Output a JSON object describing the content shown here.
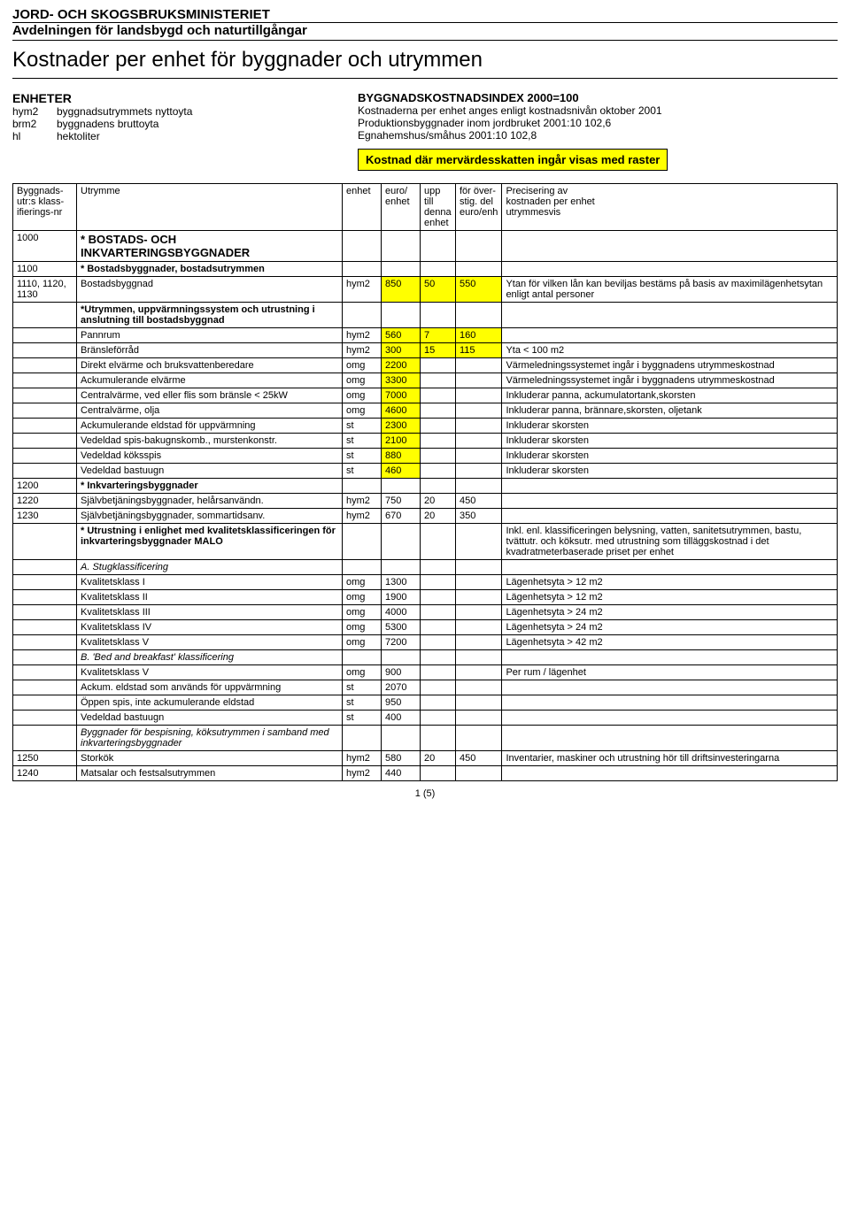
{
  "header": {
    "ministry": "JORD- OCH SKOGSBRUKSMINISTERIET",
    "department": "Avdelningen för landsbygd och naturtillgångar",
    "title": "Kostnader per enhet för byggnader och utrymmen"
  },
  "units": {
    "heading": "ENHETER",
    "rows": [
      {
        "abbr": "hym2",
        "desc": "byggnadsutrymmets nyttoyta"
      },
      {
        "abbr": "brm2",
        "desc": "byggnadens bruttoyta"
      },
      {
        "abbr": "hl",
        "desc": "hektoliter"
      }
    ]
  },
  "index_info": {
    "heading": "BYGGNADSKOSTNADSINDEX 2000=100",
    "lines": [
      "Kostnaderna per enhet anges enligt kostnadsnivån oktober 2001",
      "Produktionsbyggnader inom jordbruket 2001:10   102,6",
      "Egnahemshus/småhus                          2001:10   102,8"
    ],
    "vat_note": "Kostnad där mervärdesskatten ingår visas med raster"
  },
  "table_header": {
    "code": [
      "Byggnads-",
      "utr:s klass-",
      "ifierings-nr"
    ],
    "utr": "Utrymme",
    "enh": "enhet",
    "euro": [
      "euro/",
      "enhet"
    ],
    "upp": [
      "upp till",
      "denna",
      "enhet"
    ],
    "over": [
      "för över-",
      "stig. del",
      "euro/enh"
    ],
    "prec": [
      "Precisering av",
      "kostnaden per enhet",
      "utrymmesvis"
    ]
  },
  "rows": [
    {
      "code": "1000",
      "utr": "* BOSTADS- OCH INKVARTERINGSBYGGNADER",
      "cls": "section-head"
    },
    {
      "code": "1100",
      "utr": "* Bostadsbyggnader, bostadsutrymmen",
      "cls": "sub-head"
    },
    {
      "code": "1110, 1120, 1130",
      "utr": "Bostadsbyggnad",
      "enh": "hym2",
      "euro": 850,
      "upp": 50,
      "over": 550,
      "hl": true,
      "prec": "Ytan för vilken lån kan beviljas bestäms på basis av maximilägenhetsytan enligt antal personer"
    },
    {
      "utr": "*Utrymmen, uppvärmningssystem och utrustning i anslutning till bostadsbyggnad",
      "cls": "sub-head"
    },
    {
      "utr": "Pannrum",
      "enh": "hym2",
      "euro": 560,
      "upp": 7,
      "over": 160,
      "hl": true
    },
    {
      "utr": "Bränsleförråd",
      "enh": "hym2",
      "euro": 300,
      "upp": 15,
      "over": 115,
      "hl": true,
      "prec": "Yta < 100 m2"
    },
    {
      "utr": "Direkt elvärme och bruksvattenberedare",
      "enh": "omg",
      "euro": 2200,
      "hl": true,
      "prec": "Värmeledningssystemet ingår i byggnadens utrymmeskostnad"
    },
    {
      "utr": "Ackumulerande elvärme",
      "enh": "omg",
      "euro": 3300,
      "hl": true,
      "prec": "Värmeledningssystemet ingår i byggnadens utrymmeskostnad"
    },
    {
      "utr": "Centralvärme, ved eller flis som bränsle < 25kW",
      "enh": "omg",
      "euro": 7000,
      "hl": true,
      "prec": "Inkluderar panna, ackumulatortank,skorsten"
    },
    {
      "utr": "Centralvärme, olja",
      "enh": "omg",
      "euro": 4600,
      "hl": true,
      "prec": "Inkluderar panna, brännare,skorsten, oljetank"
    },
    {
      "utr": "Ackumulerande eldstad för uppvärmning",
      "enh": "st",
      "euro": 2300,
      "hl": true,
      "prec": "Inkluderar skorsten"
    },
    {
      "utr": "Vedeldad spis-bakugnskomb., murstenkonstr.",
      "enh": "st",
      "euro": 2100,
      "hl": true,
      "prec": "Inkluderar skorsten"
    },
    {
      "utr": "Vedeldad köksspis",
      "enh": "st",
      "euro": 880,
      "hl": true,
      "prec": "Inkluderar skorsten"
    },
    {
      "utr": "Vedeldad bastuugn",
      "enh": "st",
      "euro": 460,
      "hl": true,
      "prec": "Inkluderar skorsten"
    },
    {
      "code": "1200",
      "utr": "* Inkvarteringsbyggnader",
      "cls": "sub-head"
    },
    {
      "code": "1220",
      "utr": "Självbetjäningsbyggnader, helårsanvändn.",
      "enh": "hym2",
      "euro": 750,
      "upp": 20,
      "over": 450
    },
    {
      "code": "1230",
      "utr": "Självbetjäningsbyggnader, sommartidsanv.",
      "enh": "hym2",
      "euro": 670,
      "upp": 20,
      "over": 350
    },
    {
      "utr": "* Utrustning i enlighet med kvalitetsklassificeringen för inkvarteringsbyggnader MALO",
      "cls": "sub-head",
      "prec": "Inkl. enl. klassificeringen belysning, vatten, sanitetsutrymmen, bastu, tvättutr. och köksutr. med utrustning som tilläggskostnad i det kvadratmeterbaserade priset per enhet"
    },
    {
      "utr": "A. Stugklassificering",
      "cls": "italic"
    },
    {
      "utr": "Kvalitetsklass I",
      "enh": "omg",
      "euro": 1300,
      "prec": "Lägenhetsyta > 12 m2"
    },
    {
      "utr": "Kvalitetsklass II",
      "enh": "omg",
      "euro": 1900,
      "prec": "Lägenhetsyta > 12 m2"
    },
    {
      "utr": "Kvalitetsklass III",
      "enh": "omg",
      "euro": 4000,
      "prec": "Lägenhetsyta > 24 m2"
    },
    {
      "utr": "Kvalitetsklass IV",
      "enh": "omg",
      "euro": 5300,
      "prec": "Lägenhetsyta > 24 m2"
    },
    {
      "utr": "Kvalitetsklass V",
      "enh": "omg",
      "euro": 7200,
      "prec": "Lägenhetsyta > 42 m2"
    },
    {
      "utr": "B. 'Bed and breakfast' klassificering",
      "cls": "italic"
    },
    {
      "utr": "Kvalitetsklass  V",
      "enh": "omg",
      "euro": 900,
      "prec": "Per rum / lägenhet"
    },
    {
      "utr": "Ackum. eldstad som används för uppvärmning",
      "enh": "st",
      "euro": 2070
    },
    {
      "utr": "Öppen spis, inte ackumulerande eldstad",
      "enh": "st",
      "euro": 950
    },
    {
      "utr": "Vedeldad bastuugn",
      "enh": "st",
      "euro": 400
    },
    {
      "utr": "Byggnader för bespisning, köksutrymmen i samband med inkvarteringsbyggnader",
      "cls": "italic"
    },
    {
      "code": "1250",
      "utr": "Storkök",
      "enh": "hym2",
      "euro": 580,
      "upp": 20,
      "over": 450,
      "prec": "Inventarier, maskiner och utrustning hör till driftsinvesteringarna"
    },
    {
      "code": "1240",
      "utr": "Matsalar och festsalsutrymmen",
      "enh": "hym2",
      "euro": 440
    }
  ],
  "footer": {
    "page": "1 (5)"
  },
  "colors": {
    "highlight": "#ffff00",
    "text": "#000000",
    "bg": "#ffffff"
  }
}
